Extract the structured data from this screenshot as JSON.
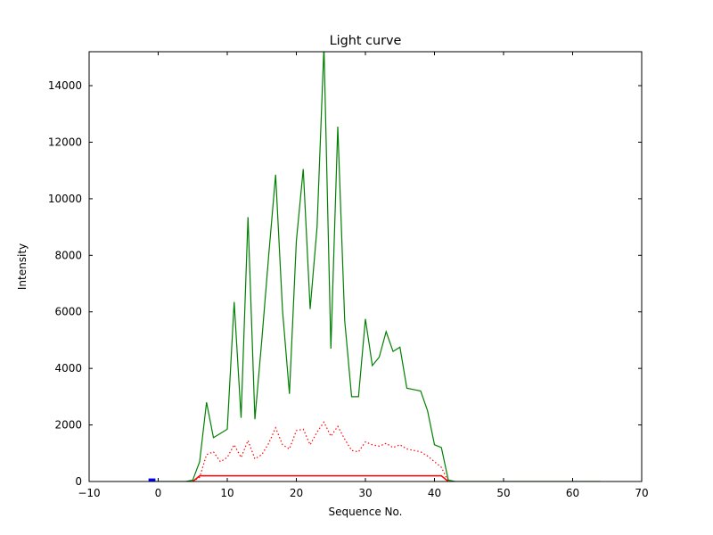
{
  "chart_data": {
    "type": "line",
    "title": "Light curve",
    "xlabel": "Sequence No.",
    "ylabel": "Intensity",
    "xlim": [
      -10,
      70
    ],
    "ylim": [
      0,
      15200
    ],
    "grid": false,
    "legend": "none",
    "background_color": "#ffffff",
    "frame_color": "#000000",
    "xticks": [
      -10,
      0,
      10,
      20,
      30,
      40,
      50,
      60,
      70
    ],
    "xtick_labels": [
      "−10",
      "0",
      "10",
      "20",
      "30",
      "40",
      "50",
      "60",
      "70"
    ],
    "yticks": [
      0,
      2000,
      4000,
      6000,
      8000,
      10000,
      12000,
      14000
    ],
    "ytick_labels": [
      "0",
      "2000",
      "4000",
      "6000",
      "8000",
      "10000",
      "12000",
      "14000"
    ],
    "series": [
      {
        "name": "green-solid-lightcurve",
        "color": "#008000",
        "style": "solid",
        "width": 1.2,
        "x": [
          -1,
          0,
          1,
          2,
          3,
          4,
          5,
          6,
          7,
          8,
          9,
          10,
          11,
          12,
          13,
          14,
          15,
          16,
          17,
          18,
          19,
          20,
          21,
          22,
          23,
          24,
          25,
          26,
          27,
          28,
          29,
          30,
          31,
          32,
          33,
          34,
          35,
          36,
          37,
          38,
          39,
          40,
          41,
          42,
          43,
          44,
          45,
          46,
          47,
          48,
          49,
          50,
          51,
          52,
          53,
          54,
          55,
          56,
          57,
          58,
          59,
          60,
          61,
          62,
          63,
          64
        ],
        "y": [
          0,
          0,
          0,
          0,
          0,
          0,
          50,
          700,
          2800,
          1550,
          1700,
          1850,
          6350,
          2250,
          9350,
          2200,
          5000,
          8000,
          10850,
          6050,
          3100,
          8500,
          11050,
          6100,
          9000,
          15400,
          4700,
          12550,
          5700,
          3000,
          3000,
          5750,
          4100,
          4400,
          5300,
          4600,
          4750,
          3300,
          3250,
          3200,
          2500,
          1300,
          1200,
          50,
          0,
          0,
          0,
          0,
          0,
          0,
          0,
          0,
          0,
          0,
          0,
          0,
          0,
          0,
          0,
          0,
          0,
          0,
          0,
          0,
          0,
          0
        ]
      },
      {
        "name": "red-dotted-background",
        "color": "#ff0000",
        "style": "dotted",
        "width": 1.2,
        "x": [
          5,
          6,
          7,
          8,
          9,
          10,
          11,
          12,
          13,
          14,
          15,
          16,
          17,
          18,
          19,
          20,
          21,
          22,
          23,
          24,
          25,
          26,
          27,
          28,
          29,
          30,
          31,
          32,
          33,
          34,
          35,
          36,
          37,
          38,
          39,
          40,
          41,
          42
        ],
        "y": [
          0,
          150,
          950,
          1050,
          700,
          850,
          1300,
          850,
          1450,
          800,
          950,
          1350,
          1900,
          1300,
          1150,
          1800,
          1850,
          1300,
          1750,
          2100,
          1600,
          1950,
          1500,
          1100,
          1050,
          1400,
          1300,
          1250,
          1350,
          1200,
          1300,
          1150,
          1100,
          1050,
          900,
          700,
          500,
          0
        ]
      },
      {
        "name": "red-solid-baseline",
        "color": "#ff0000",
        "style": "solid",
        "width": 1.5,
        "x": [
          5,
          6,
          41,
          42
        ],
        "y": [
          0,
          200,
          200,
          0
        ]
      },
      {
        "name": "blue-marker-segment",
        "color": "#0000ff",
        "style": "solid",
        "width": 3,
        "x": [
          -1.4,
          -0.4
        ],
        "y": [
          60,
          60
        ]
      }
    ]
  }
}
